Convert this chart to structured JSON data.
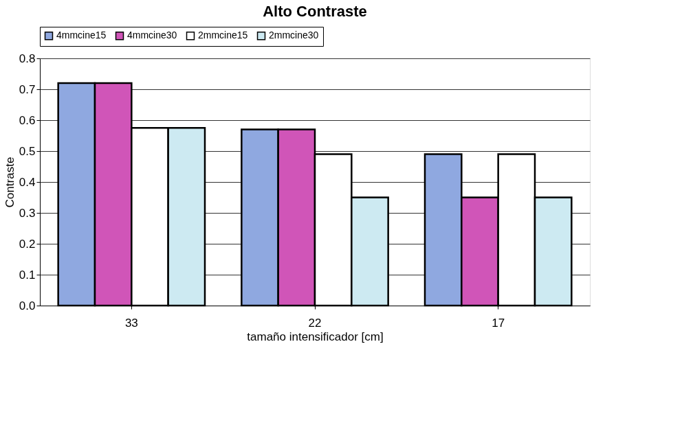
{
  "chart_data": {
    "type": "bar",
    "title": "Alto Contraste",
    "xlabel": "tamaño intensificador [cm]",
    "ylabel": "Contraste",
    "categories": [
      "33",
      "22",
      "17"
    ],
    "series": [
      {
        "name": "4mmcine15",
        "color": "#8fa8e0",
        "values": [
          0.72,
          0.57,
          0.49
        ]
      },
      {
        "name": "4mmcine30",
        "color": "#d055b8",
        "values": [
          0.72,
          0.57,
          0.35
        ]
      },
      {
        "name": "2mmcine15",
        "color": "#ffffff",
        "values": [
          0.575,
          0.49,
          0.49
        ]
      },
      {
        "name": "2mmcine30",
        "color": "#cdeaf2",
        "values": [
          0.575,
          0.35,
          0.35
        ]
      }
    ],
    "ylim": [
      0,
      0.8
    ],
    "yticks": [
      {
        "value": 0,
        "label": "0.0"
      },
      0.1,
      0.2,
      0.3,
      0.4,
      0.5,
      0.6,
      0.7,
      0.8
    ],
    "grid": "y",
    "legend": "top"
  }
}
